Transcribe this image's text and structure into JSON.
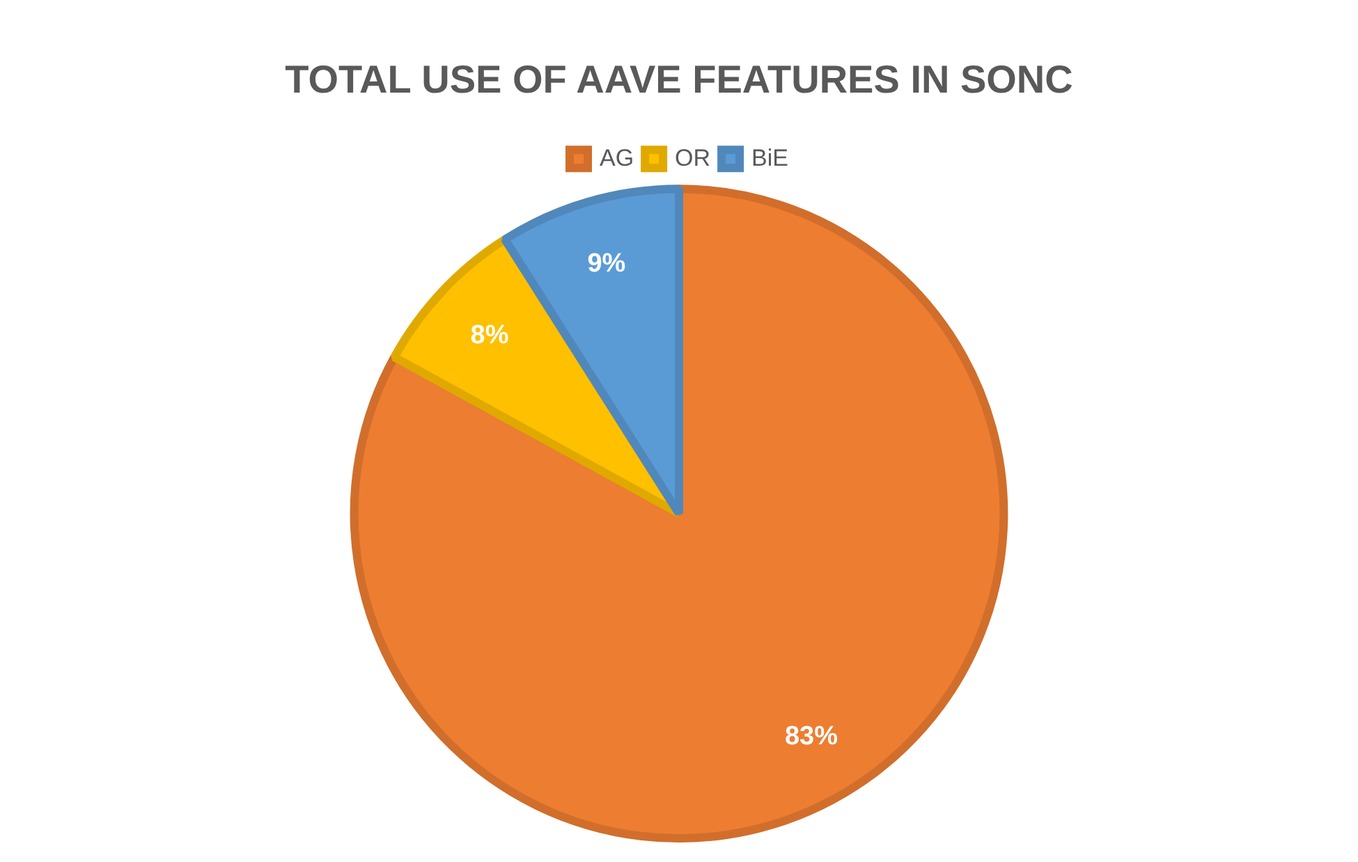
{
  "chart_data": {
    "type": "pie",
    "title": "TOTAL USE OF AAVE FEATURES IN SONC",
    "categories": [
      "AG",
      "OR",
      "BiE"
    ],
    "values": [
      83,
      8,
      9
    ],
    "colors": [
      "#ed7d31",
      "#ffc000",
      "#5b9bd5"
    ],
    "value_labels": [
      "83%",
      "8%",
      "9%"
    ],
    "legend": "top"
  }
}
